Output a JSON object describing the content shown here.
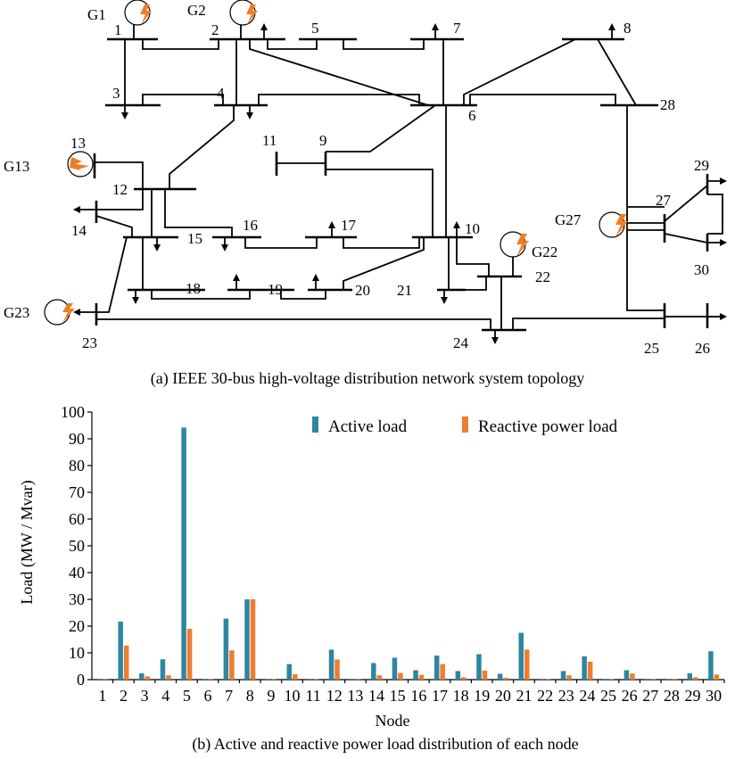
{
  "topology": {
    "caption": "(a) IEEE 30-bus high-voltage distribution network system topology",
    "bus_labels": [
      "1",
      "2",
      "3",
      "4",
      "5",
      "6",
      "7",
      "8",
      "9",
      "10",
      "11",
      "12",
      "13",
      "14",
      "15",
      "16",
      "17",
      "18",
      "19",
      "20",
      "21",
      "22",
      "23",
      "24",
      "25",
      "26",
      "27",
      "28",
      "29",
      "30"
    ],
    "generators": [
      "G1",
      "G2",
      "G13",
      "G22",
      "G23",
      "G27"
    ]
  },
  "chart_data": {
    "type": "bar",
    "title": "",
    "caption": "(b) Active and reactive power load distribution of each node",
    "xlabel": "Node",
    "ylabel": "Load (MW / Mvar)",
    "ylim": [
      0,
      100
    ],
    "yticks": [
      0,
      10,
      20,
      30,
      40,
      50,
      60,
      70,
      80,
      90,
      100
    ],
    "legend_position": "top-right",
    "grid": false,
    "categories": [
      "1",
      "2",
      "3",
      "4",
      "5",
      "6",
      "7",
      "8",
      "9",
      "10",
      "11",
      "12",
      "13",
      "14",
      "15",
      "16",
      "17",
      "18",
      "19",
      "20",
      "21",
      "22",
      "23",
      "24",
      "25",
      "26",
      "27",
      "28",
      "29",
      "30"
    ],
    "series": [
      {
        "name": "Active load",
        "color": "#2e86a0",
        "values": [
          0,
          21.7,
          2.4,
          7.6,
          94.2,
          0,
          22.8,
          30.0,
          0,
          5.8,
          0,
          11.2,
          0,
          6.2,
          8.2,
          3.5,
          9.0,
          3.2,
          9.5,
          2.2,
          17.5,
          0,
          3.2,
          8.7,
          0,
          3.5,
          0,
          0,
          2.4,
          10.6
        ]
      },
      {
        "name": "Reactive power load",
        "color": "#ee7d31",
        "values": [
          0,
          12.7,
          1.2,
          1.6,
          19.0,
          0,
          10.9,
          30.0,
          0,
          2.0,
          0,
          7.5,
          0,
          1.6,
          2.5,
          1.8,
          5.8,
          0.9,
          3.4,
          0.7,
          11.2,
          0,
          1.6,
          6.7,
          0,
          2.3,
          0,
          0,
          0.9,
          1.9
        ]
      }
    ]
  }
}
